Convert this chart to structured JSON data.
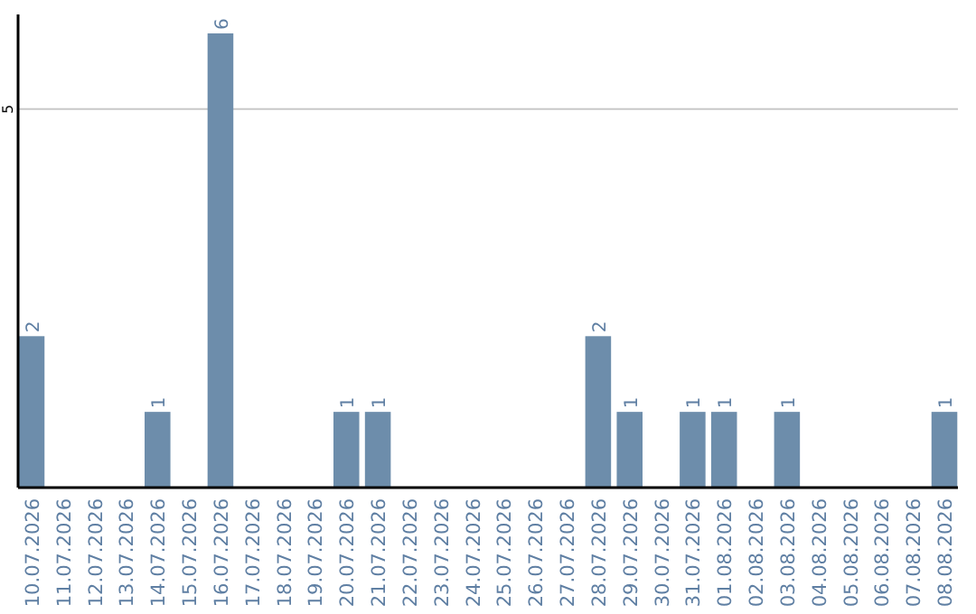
{
  "chart_data": {
    "type": "bar",
    "categories": [
      "10.07.2026",
      "11.07.2026",
      "12.07.2026",
      "13.07.2026",
      "14.07.2026",
      "15.07.2026",
      "16.07.2026",
      "17.07.2026",
      "18.07.2026",
      "19.07.2026",
      "20.07.2026",
      "21.07.2026",
      "22.07.2026",
      "23.07.2026",
      "24.07.2026",
      "25.07.2026",
      "26.07.2026",
      "27.07.2026",
      "28.07.2026",
      "29.07.2026",
      "30.07.2026",
      "31.07.2026",
      "01.08.2026",
      "02.08.2026",
      "03.08.2026",
      "04.08.2026",
      "05.08.2026",
      "06.08.2026",
      "07.08.2026",
      "08.08.2026"
    ],
    "values": [
      2,
      0,
      0,
      0,
      1,
      0,
      6,
      0,
      0,
      0,
      1,
      1,
      0,
      0,
      0,
      0,
      0,
      0,
      2,
      1,
      0,
      1,
      1,
      0,
      1,
      0,
      0,
      0,
      0,
      1
    ],
    "value_labels": [
      "2",
      null,
      null,
      null,
      "1",
      null,
      "6",
      null,
      null,
      null,
      "1",
      "1",
      null,
      null,
      null,
      null,
      null,
      null,
      "2",
      "1",
      null,
      "1",
      "1",
      null,
      "1",
      null,
      null,
      null,
      null,
      "1"
    ],
    "color": "#6d8dab",
    "ylim": [
      0,
      6.25
    ],
    "yticks": [
      5
    ],
    "grid": "y"
  }
}
